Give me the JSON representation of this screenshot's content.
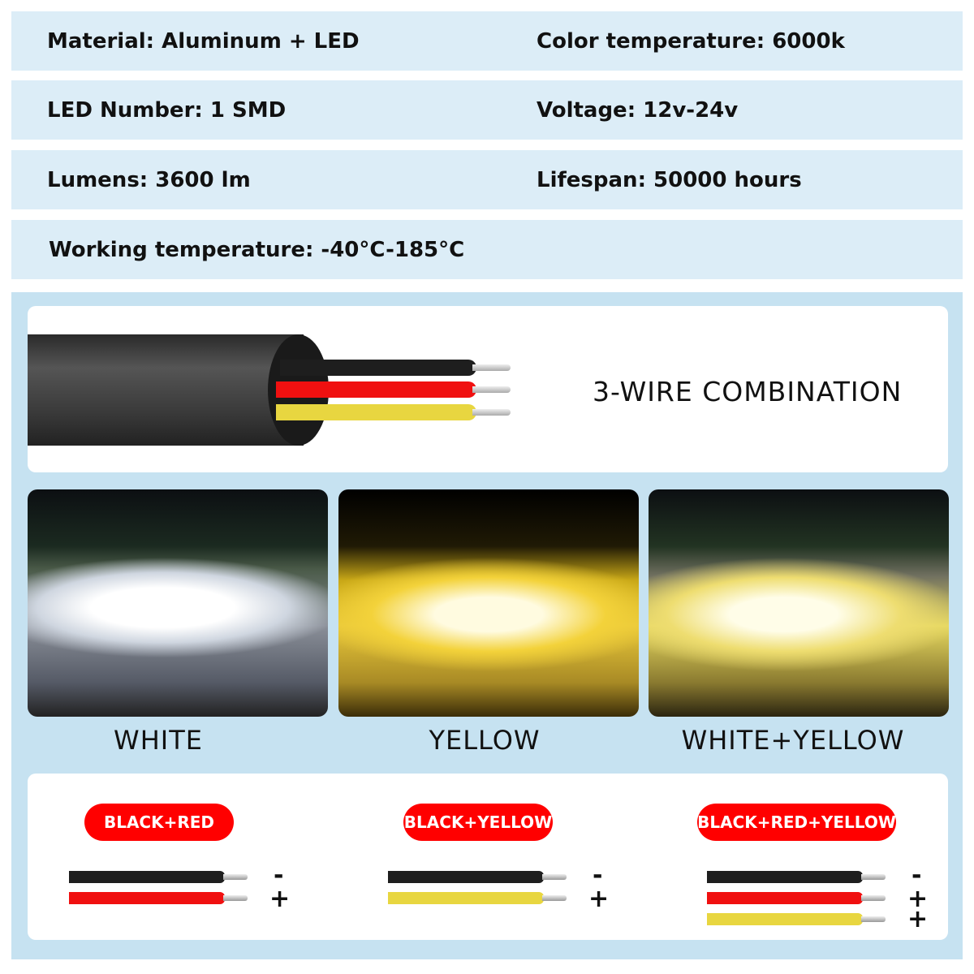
{
  "specs": {
    "material": "Material: Aluminum + LED",
    "color_temperature": "Color temperature: 6000k",
    "led_number": "LED Number: 1 SMD",
    "voltage": "Voltage: 12v-24v",
    "lumens": "Lumens: 3600 lm",
    "lifespan": "Lifespan: 50000 hours",
    "working_temperature": "Working temperature: -40°C-185°C"
  },
  "wire_title": "3-WIRE COMBINATION",
  "modes": [
    {
      "label": "WHITE",
      "pill": "BLACK+RED",
      "signs": [
        "-",
        "+"
      ]
    },
    {
      "label": "YELLOW",
      "pill": "BLACK+YELLOW",
      "signs": [
        "-",
        "+"
      ]
    },
    {
      "label": "WHITE+YELLOW",
      "pill": "BLACK+RED+YELLOW",
      "signs": [
        "-",
        "+",
        "+"
      ]
    }
  ],
  "colors": {
    "black": "#1e1e1e",
    "red": "#f01010",
    "yellow": "#e8d640",
    "pill": "#ff0000",
    "panel": "#c6e2f1",
    "row": "#dcedf7"
  }
}
